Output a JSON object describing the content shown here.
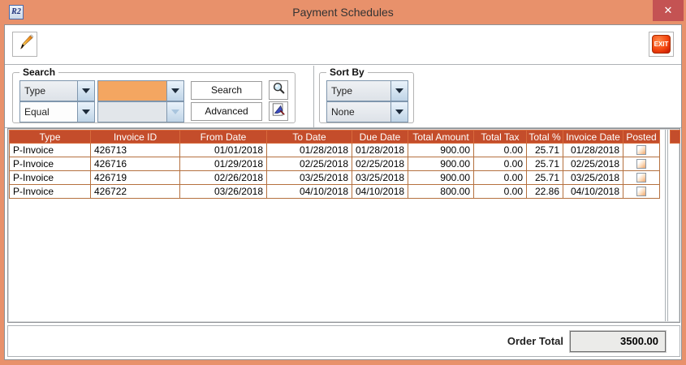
{
  "window": {
    "title": "Payment Schedules",
    "app_icon_text": "R2",
    "close_glyph": "✕"
  },
  "colors": {
    "titlebar": "#e8916b",
    "table_header": "#c44d2b",
    "highlight_field": "#f4a661",
    "exit_button": "#f4470f",
    "close_button": "#c45353"
  },
  "toolbar": {
    "edit_icon": "pencil-icon",
    "exit_label": "EXIT"
  },
  "search": {
    "label": "Search",
    "field_combo_value": "Type",
    "value_combo_value": "",
    "operator_combo_value": "Equal",
    "value2_combo_value": "",
    "search_button_label": "Search",
    "advanced_button_label": "Advanced",
    "search_icon": "magnifier-icon",
    "advanced_icon": "document-magnifier-icon"
  },
  "sort": {
    "label": "Sort By",
    "primary_combo_value": "Type",
    "secondary_combo_value": "None"
  },
  "table": {
    "columns": [
      "Type",
      "Invoice ID",
      "From Date",
      "To Date",
      "Due Date",
      "Total Amount",
      "Total Tax",
      "Total %",
      "Invoice Date",
      "Posted"
    ],
    "rows": [
      [
        "P-Invoice",
        "426713",
        "01/01/2018",
        "01/28/2018",
        "01/28/2018",
        "900.00",
        "0.00",
        "25.71",
        "01/28/2018",
        false
      ],
      [
        "P-Invoice",
        "426716",
        "01/29/2018",
        "02/25/2018",
        "02/25/2018",
        "900.00",
        "0.00",
        "25.71",
        "02/25/2018",
        false
      ],
      [
        "P-Invoice",
        "426719",
        "02/26/2018",
        "03/25/2018",
        "03/25/2018",
        "900.00",
        "0.00",
        "25.71",
        "03/25/2018",
        false
      ],
      [
        "P-Invoice",
        "426722",
        "03/26/2018",
        "04/10/2018",
        "04/10/2018",
        "800.00",
        "0.00",
        "22.86",
        "04/10/2018",
        false
      ]
    ]
  },
  "footer": {
    "order_total_label": "Order Total",
    "order_total_value": "3500.00"
  }
}
